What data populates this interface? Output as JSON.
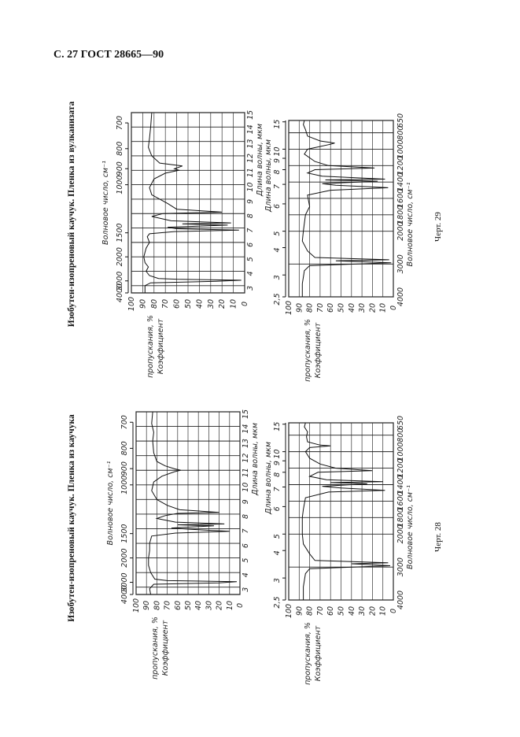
{
  "header": "С. 27 ГОСТ 28665—90",
  "figures": [
    {
      "caption": "Изобутен-изопреновый каучук. Пленка из каучука",
      "number": "Черт. 28"
    },
    {
      "caption": "Изобутен-изопреновый каучук. Пленка из вулканизата",
      "number": "Черт. 29"
    }
  ],
  "axis_text": {
    "wavenumber": "Волновое число, см⁻¹",
    "wavelength": "Длина волны, мкм",
    "transmittance_1": "Коэффициент",
    "transmittance_2": "пропускания, %"
  },
  "chart_data": [
    {
      "type": "line",
      "figure": "Черт. 28",
      "panel": "upper",
      "x_unit": "мкм",
      "xlim": [
        2.5,
        15
      ],
      "ylim": [
        0,
        100
      ],
      "grid": true,
      "wavelength_ticks": [
        "3",
        "4",
        "5",
        "6",
        "7",
        "8",
        "9",
        "10",
        "11",
        "12",
        "13",
        "14",
        "15"
      ],
      "wavenumber_ticks": [
        "4000",
        "3000",
        "2000",
        "1500",
        "1000",
        "900",
        "800",
        "700"
      ],
      "transmittance_ticks": [
        "100",
        "90",
        "80",
        "70",
        "60",
        "50",
        "40",
        "30",
        "20",
        "10",
        "0"
      ],
      "points": [
        [
          2.5,
          86
        ],
        [
          2.9,
          87
        ],
        [
          3.2,
          83
        ],
        [
          3.3,
          20
        ],
        [
          3.38,
          3
        ],
        [
          3.45,
          70
        ],
        [
          3.55,
          82
        ],
        [
          4,
          86
        ],
        [
          4.5,
          88
        ],
        [
          5,
          88
        ],
        [
          5.5,
          87
        ],
        [
          6,
          87
        ],
        [
          6.5,
          85
        ],
        [
          6.7,
          62
        ],
        [
          6.82,
          10
        ],
        [
          6.95,
          45
        ],
        [
          7.05,
          66
        ],
        [
          7.2,
          25
        ],
        [
          7.27,
          60
        ],
        [
          7.33,
          15
        ],
        [
          7.45,
          62
        ],
        [
          7.7,
          80
        ],
        [
          7.9,
          72
        ],
        [
          8.05,
          60
        ],
        [
          8.12,
          20
        ],
        [
          8.3,
          58
        ],
        [
          8.6,
          70
        ],
        [
          9,
          80
        ],
        [
          9.6,
          85
        ],
        [
          10.2,
          83
        ],
        [
          10.6,
          75
        ],
        [
          10.9,
          63
        ],
        [
          11.0,
          57
        ],
        [
          11.1,
          63
        ],
        [
          11.3,
          72
        ],
        [
          11.6,
          80
        ],
        [
          12.2,
          83
        ],
        [
          13,
          84
        ],
        [
          13.6,
          83
        ],
        [
          14.2,
          85
        ],
        [
          15,
          84
        ]
      ]
    },
    {
      "type": "line",
      "figure": "Черт. 28",
      "panel": "lower",
      "x_unit": "см⁻¹",
      "xlim": [
        4000,
        650
      ],
      "ylim": [
        0,
        100
      ],
      "grid": true,
      "wavelength_ticks": [
        "2,5",
        "3",
        "4",
        "5",
        "6",
        "7",
        "8",
        "9",
        "10",
        "15"
      ],
      "wavenumber_ticks": [
        "4000",
        "3000",
        "2000",
        "1800",
        "1600",
        "1400",
        "1200",
        "1000",
        "800",
        "650"
      ],
      "transmittance_ticks": [
        "100",
        "90",
        "80",
        "70",
        "60",
        "50",
        "40",
        "30",
        "20",
        "10",
        "0"
      ],
      "points": [
        [
          4000,
          86
        ],
        [
          3600,
          86
        ],
        [
          3200,
          84
        ],
        [
          3050,
          80
        ],
        [
          2960,
          3
        ],
        [
          2900,
          40
        ],
        [
          2870,
          5
        ],
        [
          2800,
          75
        ],
        [
          2600,
          80
        ],
        [
          2300,
          86
        ],
        [
          2000,
          87
        ],
        [
          1800,
          87
        ],
        [
          1700,
          86
        ],
        [
          1560,
          84
        ],
        [
          1490,
          62
        ],
        [
          1470,
          8
        ],
        [
          1440,
          50
        ],
        [
          1420,
          68
        ],
        [
          1390,
          25
        ],
        [
          1375,
          60
        ],
        [
          1365,
          10
        ],
        [
          1340,
          64
        ],
        [
          1300,
          80
        ],
        [
          1250,
          72
        ],
        [
          1230,
          20
        ],
        [
          1200,
          55
        ],
        [
          1150,
          70
        ],
        [
          1080,
          80
        ],
        [
          1000,
          84
        ],
        [
          950,
          80
        ],
        [
          930,
          60
        ],
        [
          920,
          70
        ],
        [
          880,
          82
        ],
        [
          820,
          83
        ],
        [
          760,
          82
        ],
        [
          700,
          85
        ],
        [
          650,
          84
        ]
      ]
    },
    {
      "type": "line",
      "figure": "Черт. 29",
      "panel": "upper",
      "x_unit": "мкм",
      "xlim": [
        2.5,
        15
      ],
      "ylim": [
        0,
        100
      ],
      "grid": true,
      "wavelength_ticks": [
        "3",
        "4",
        "5",
        "6",
        "7",
        "8",
        "9",
        "10",
        "11",
        "12",
        "13",
        "14",
        "15"
      ],
      "wavenumber_ticks": [
        "4000",
        "3000",
        "2000",
        "1500",
        "1000",
        "900",
        "800",
        "700"
      ],
      "transmittance_ticks": [
        "100",
        "90",
        "80",
        "70",
        "60",
        "50",
        "40",
        "30",
        "20",
        "10",
        "0"
      ],
      "points": [
        [
          2.5,
          88
        ],
        [
          3.0,
          88
        ],
        [
          3.2,
          83
        ],
        [
          3.3,
          25
        ],
        [
          3.38,
          3
        ],
        [
          3.45,
          60
        ],
        [
          3.5,
          76
        ],
        [
          3.7,
          84
        ],
        [
          4,
          87
        ],
        [
          4.3,
          85
        ],
        [
          4.6,
          88
        ],
        [
          5,
          89
        ],
        [
          5.6,
          87
        ],
        [
          6,
          84
        ],
        [
          6.4,
          86
        ],
        [
          6.6,
          84
        ],
        [
          6.75,
          62
        ],
        [
          6.85,
          5
        ],
        [
          6.95,
          60
        ],
        [
          7.05,
          68
        ],
        [
          7.2,
          15
        ],
        [
          7.28,
          55
        ],
        [
          7.35,
          12
        ],
        [
          7.5,
          65
        ],
        [
          7.8,
          82
        ],
        [
          8.0,
          72
        ],
        [
          8.1,
          20
        ],
        [
          8.3,
          60
        ],
        [
          8.7,
          68
        ],
        [
          9.3,
          82
        ],
        [
          9.8,
          84
        ],
        [
          10.4,
          80
        ],
        [
          10.8,
          70
        ],
        [
          11.0,
          58
        ],
        [
          11.1,
          62
        ],
        [
          11.3,
          55
        ],
        [
          11.5,
          75
        ],
        [
          12,
          82
        ],
        [
          12.6,
          85
        ],
        [
          13.2,
          84
        ],
        [
          14,
          83
        ],
        [
          15,
          82
        ]
      ]
    },
    {
      "type": "line",
      "figure": "Черт. 29",
      "panel": "lower",
      "x_unit": "см⁻¹",
      "xlim": [
        4000,
        650
      ],
      "ylim": [
        0,
        100
      ],
      "grid": true,
      "wavelength_ticks": [
        "2,5",
        "3",
        "4",
        "5",
        "6",
        "7",
        "8",
        "9",
        "10",
        "15"
      ],
      "wavenumber_ticks": [
        "4000",
        "3000",
        "2000",
        "1800",
        "1600",
        "1400",
        "1200",
        "1000",
        "800",
        "650"
      ],
      "transmittance_ticks": [
        "100",
        "90",
        "80",
        "70",
        "60",
        "50",
        "40",
        "30",
        "20",
        "10",
        "0"
      ],
      "points": [
        [
          4000,
          87
        ],
        [
          3600,
          87
        ],
        [
          3200,
          85
        ],
        [
          3050,
          80
        ],
        [
          2960,
          2
        ],
        [
          2900,
          55
        ],
        [
          2870,
          4
        ],
        [
          2800,
          75
        ],
        [
          2600,
          82
        ],
        [
          2300,
          87
        ],
        [
          2000,
          86
        ],
        [
          1800,
          84
        ],
        [
          1700,
          80
        ],
        [
          1560,
          82
        ],
        [
          1500,
          60
        ],
        [
          1470,
          5
        ],
        [
          1440,
          55
        ],
        [
          1420,
          68
        ],
        [
          1390,
          15
        ],
        [
          1375,
          65
        ],
        [
          1365,
          8
        ],
        [
          1330,
          68
        ],
        [
          1290,
          82
        ],
        [
          1250,
          75
        ],
        [
          1230,
          18
        ],
        [
          1200,
          62
        ],
        [
          1150,
          75
        ],
        [
          1060,
          85
        ],
        [
          1000,
          82
        ],
        [
          940,
          60
        ],
        [
          925,
          56
        ],
        [
          900,
          70
        ],
        [
          840,
          82
        ],
        [
          760,
          84
        ],
        [
          700,
          86
        ],
        [
          650,
          85
        ]
      ]
    }
  ]
}
